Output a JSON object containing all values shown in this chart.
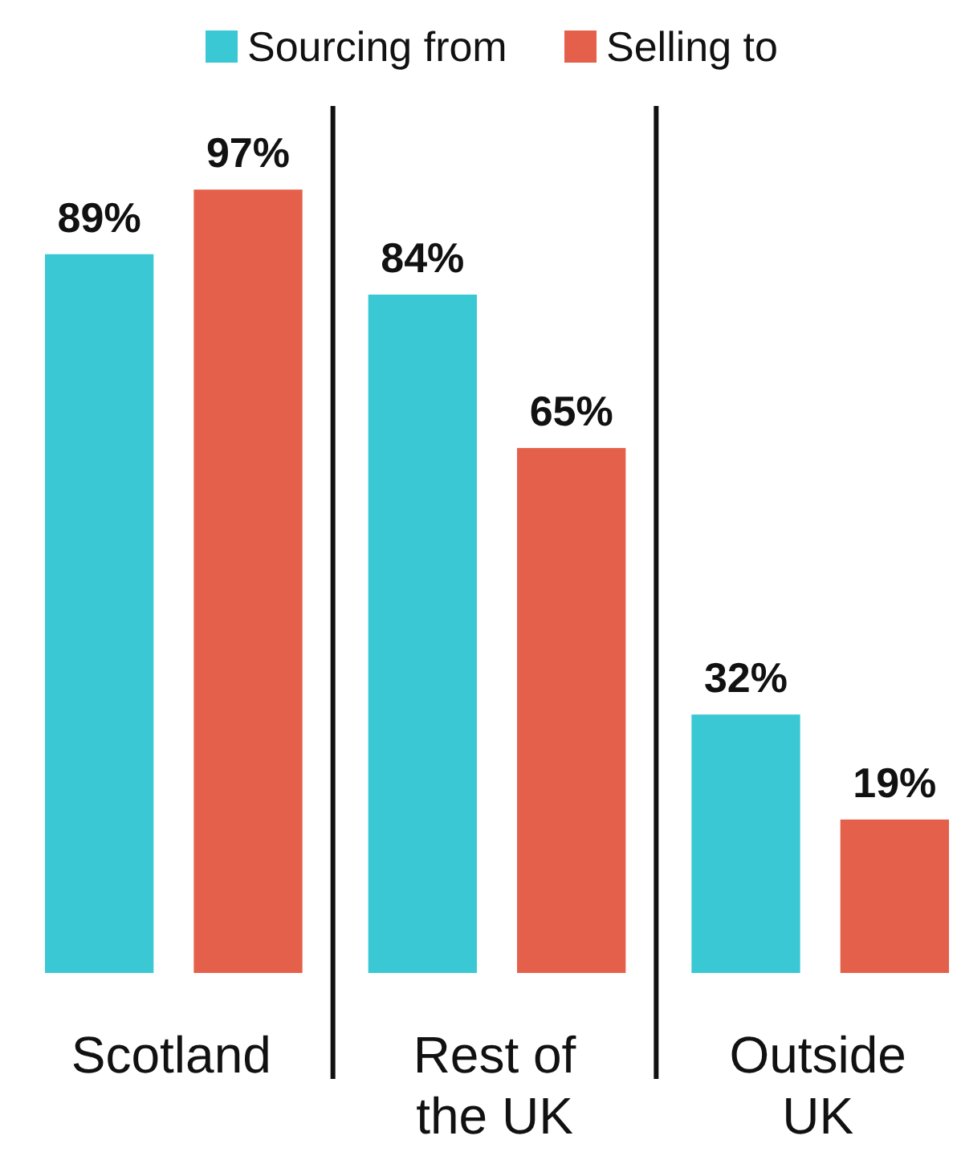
{
  "chart_data": {
    "type": "bar",
    "categories": [
      "Scotland",
      "Rest of the UK",
      "Outside UK"
    ],
    "series": [
      {
        "name": "Sourcing from",
        "color": "#3ac8d4",
        "values": [
          89,
          84,
          32
        ],
        "value_labels": [
          "89%",
          "84%",
          "32%"
        ]
      },
      {
        "name": "Selling to",
        "color": "#e5604a",
        "values": [
          97,
          65,
          19
        ],
        "value_labels": [
          "97%",
          "65%",
          "19%"
        ]
      }
    ],
    "legend": "top"
  }
}
